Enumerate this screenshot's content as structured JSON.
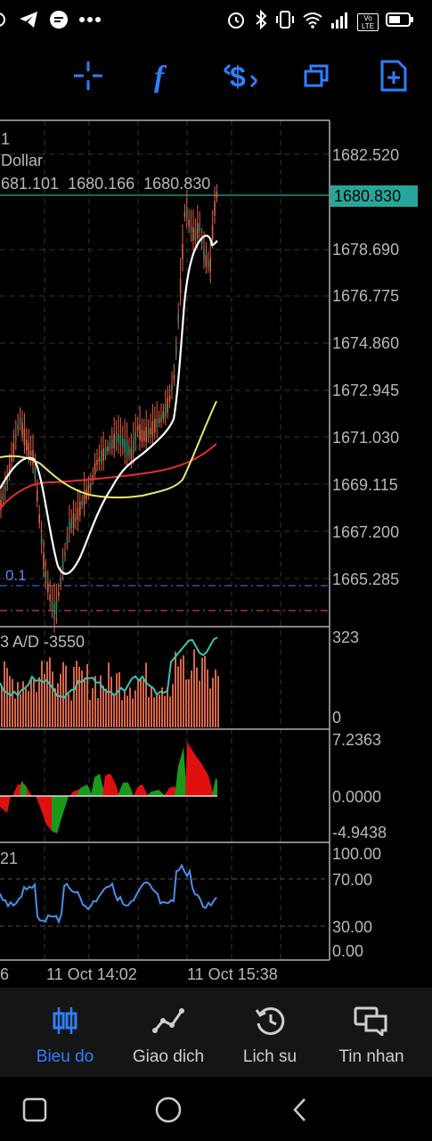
{
  "status_bar": {
    "left_icons": [
      "app-icon",
      "telegram-icon",
      "messenger-icon",
      "more-dots-icon"
    ],
    "right_icons": [
      "alarm-icon",
      "bluetooth-icon",
      "vibrate-icon",
      "wifi-icon",
      "signal-icon",
      "volte-icon",
      "battery-icon"
    ],
    "volte_text": "Vo LTE"
  },
  "toolbar": {
    "items": [
      "crosshair-icon",
      "function-icon",
      "trade-icon",
      "windows-icon",
      "add-chart-icon"
    ],
    "accent": "#2f7fff"
  },
  "chart": {
    "symbol_line1": "1",
    "symbol_line2": "Dollar",
    "ohlc_text": "681.101  1680.166  1680.830",
    "current_price": "1680.830",
    "price_ticks": [
      "1682.520",
      "1678.690",
      "1676.775",
      "1674.860",
      "1672.945",
      "1671.030",
      "1669.115",
      "1667.200",
      "1665.285"
    ],
    "level_label": "0.1",
    "colors": {
      "candle": "#e06040",
      "ma_white": "#ffffff",
      "ma_yellow": "#e8e870",
      "ma_red": "#e03030",
      "price_tag": "#26a69a",
      "grid": "#333333"
    }
  },
  "indicators": {
    "ad": {
      "label": "3 A/D -3550",
      "scale_top": "323",
      "scale_bottom": "0"
    },
    "osc": {
      "scale_top": "7.2363",
      "scale_mid": "0.0000",
      "scale_bottom": "-4.9438"
    },
    "rsi": {
      "label": "21",
      "scale": [
        "100.00",
        "70.00",
        "30.00",
        "0.00"
      ]
    }
  },
  "time_axis": [
    "6",
    "11 Oct 14:02",
    "11 Oct 15:38"
  ],
  "bottom_nav": [
    {
      "label": "Bieu do",
      "icon": "candlestick-icon",
      "active": true
    },
    {
      "label": "Giao dich",
      "icon": "trend-icon",
      "active": false
    },
    {
      "label": "Lich su",
      "icon": "history-icon",
      "active": false
    },
    {
      "label": "Tin nhan",
      "icon": "messages-icon",
      "active": false
    }
  ]
}
